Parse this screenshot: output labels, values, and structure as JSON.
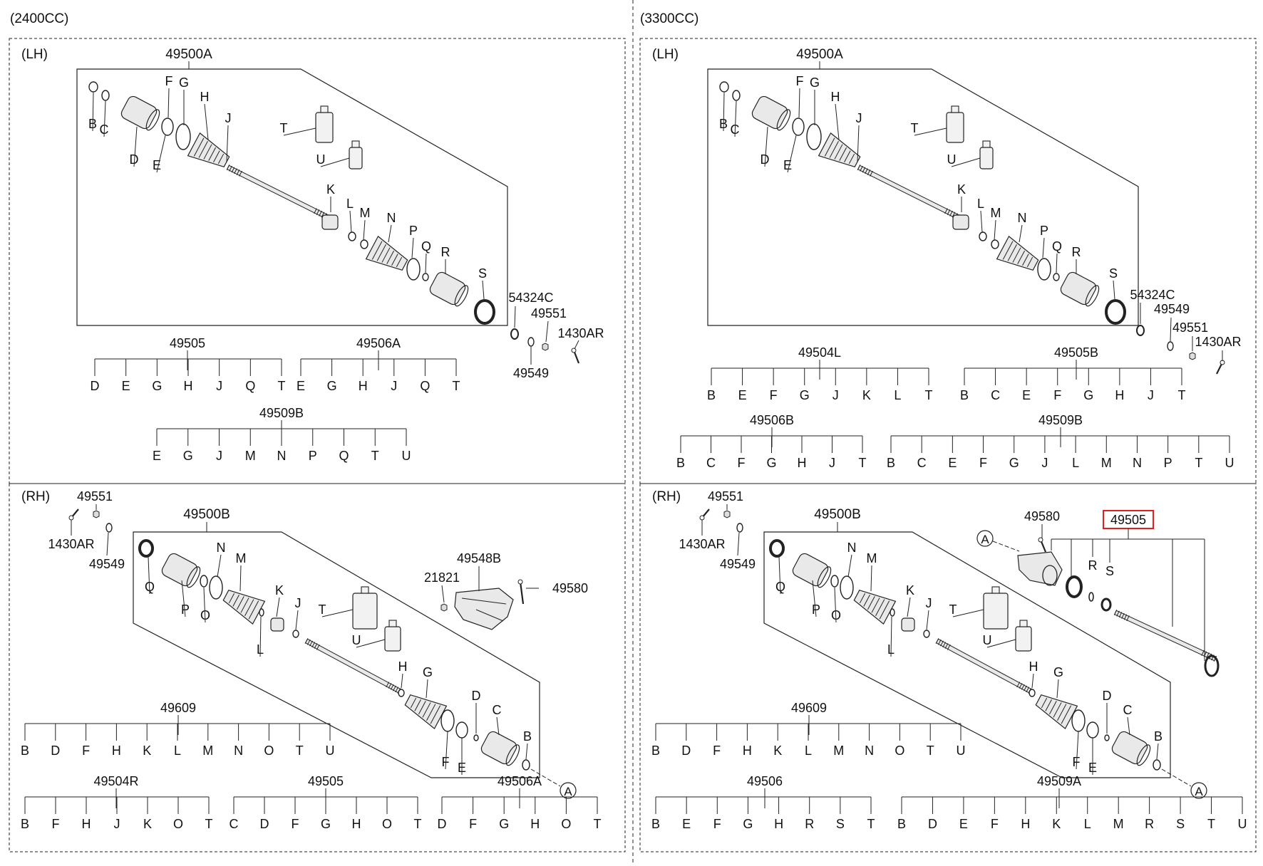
{
  "columns": [
    {
      "heading": "(2400CC)"
    },
    {
      "heading": "(3300CC)"
    }
  ],
  "panels": {
    "q1": {
      "side": "(LH)",
      "assembly": "49500A",
      "parts": [
        "B",
        "C",
        "D",
        "E",
        "F",
        "G",
        "H",
        "J",
        "K",
        "L",
        "M",
        "N",
        "P",
        "Q",
        "R",
        "S",
        "T",
        "U"
      ],
      "extras": [
        "54324C",
        "49551",
        "1430AR",
        "49549"
      ],
      "kits": [
        {
          "code": "49505",
          "letters": [
            "D",
            "E",
            "G",
            "H",
            "J",
            "Q",
            "T"
          ]
        },
        {
          "code": "49506A",
          "letters": [
            "E",
            "G",
            "H",
            "J",
            "Q",
            "T"
          ]
        },
        {
          "code": "49509B",
          "letters": [
            "E",
            "G",
            "J",
            "M",
            "N",
            "P",
            "Q",
            "T",
            "U"
          ]
        }
      ]
    },
    "q2": {
      "side": "(LH)",
      "assembly": "49500A",
      "parts": [
        "B",
        "C",
        "D",
        "E",
        "F",
        "G",
        "H",
        "J",
        "K",
        "L",
        "M",
        "N",
        "P",
        "Q",
        "R",
        "S",
        "T",
        "U"
      ],
      "extras": [
        "54324C",
        "49549",
        "49551",
        "1430AR"
      ],
      "kits": [
        {
          "code": "49504L",
          "letters": [
            "B",
            "E",
            "F",
            "G",
            "J",
            "K",
            "L",
            "T"
          ]
        },
        {
          "code": "49505B",
          "letters": [
            "B",
            "C",
            "E",
            "F",
            "G",
            "H",
            "J",
            "T"
          ]
        },
        {
          "code": "49506B",
          "letters": [
            "B",
            "C",
            "F",
            "G",
            "H",
            "J",
            "T"
          ]
        },
        {
          "code": "49509B",
          "letters": [
            "B",
            "C",
            "E",
            "F",
            "G",
            "J",
            "L",
            "M",
            "N",
            "P",
            "T",
            "U"
          ]
        }
      ]
    },
    "q3": {
      "side": "(RH)",
      "assembly": "49500B",
      "parts": [
        "Q",
        "P",
        "O",
        "N",
        "M",
        "L",
        "K",
        "J",
        "T",
        "U",
        "H",
        "G",
        "D",
        "C",
        "F",
        "E",
        "B"
      ],
      "extras": [
        "49551",
        "1430AR",
        "49549",
        "49548B",
        "21821",
        "49580"
      ],
      "circle_ref": "A",
      "kits": [
        {
          "code": "49609",
          "letters": [
            "B",
            "D",
            "F",
            "H",
            "K",
            "L",
            "M",
            "N",
            "O",
            "T",
            "U"
          ]
        },
        {
          "code": "49504R",
          "letters": [
            "B",
            "F",
            "H",
            "J",
            "K",
            "O",
            "T"
          ]
        },
        {
          "code": "49505",
          "letters": [
            "C",
            "D",
            "F",
            "G",
            "H",
            "O",
            "T"
          ]
        },
        {
          "code": "49506A",
          "letters": [
            "D",
            "F",
            "G",
            "H",
            "O",
            "T"
          ]
        }
      ]
    },
    "q4": {
      "side": "(RH)",
      "assembly": "49500B",
      "parts": [
        "Q",
        "P",
        "O",
        "N",
        "M",
        "L",
        "K",
        "J",
        "T",
        "U",
        "H",
        "G",
        "D",
        "C",
        "F",
        "E",
        "B"
      ],
      "extras": [
        "49551",
        "1430AR",
        "49549",
        "49580"
      ],
      "circle_ref": "A",
      "highlight_kit": {
        "code": "49505",
        "letters": [
          "R",
          "S"
        ],
        "highlight_color": "#e0201b"
      },
      "kits": [
        {
          "code": "49609",
          "letters": [
            "B",
            "D",
            "F",
            "H",
            "K",
            "L",
            "M",
            "N",
            "O",
            "T",
            "U"
          ]
        },
        {
          "code": "49506",
          "letters": [
            "B",
            "E",
            "F",
            "G",
            "H",
            "R",
            "S",
            "T"
          ]
        },
        {
          "code": "49509A",
          "letters": [
            "B",
            "D",
            "E",
            "F",
            "H",
            "K",
            "L",
            "M",
            "R",
            "S",
            "T",
            "U"
          ]
        }
      ]
    }
  },
  "colors": {
    "line": "#222222",
    "highlight": "#e0201b",
    "part_fill": "#e9e9e9"
  }
}
